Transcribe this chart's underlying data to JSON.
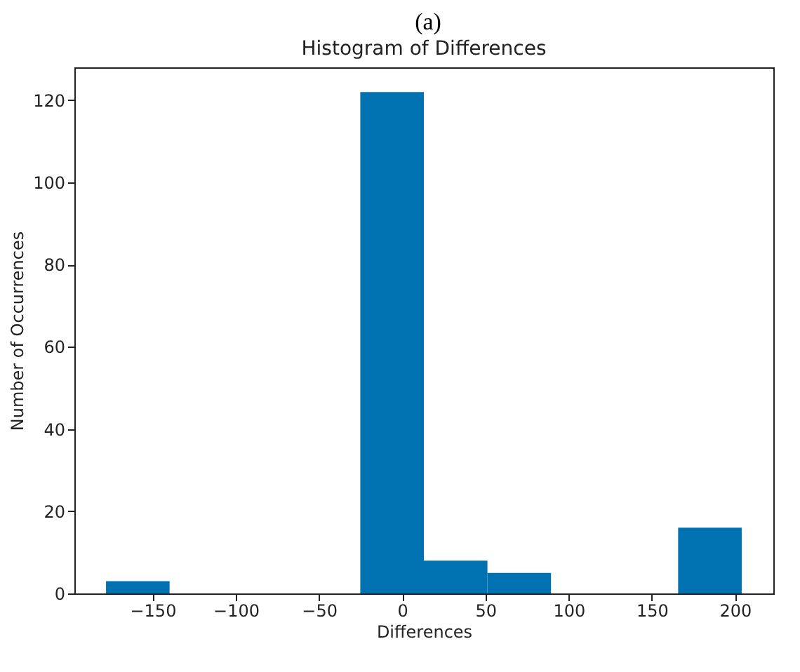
{
  "chart_data": {
    "type": "histogram",
    "title": "Histogram of Differences",
    "xlabel": "Differences",
    "ylabel": "Number of Occurrences",
    "annotations": [
      "(a)"
    ],
    "bins": [
      -178,
      -139.8,
      -101.6,
      -63.4,
      -25.2,
      13,
      51.2,
      89.4,
      127.6,
      165.8,
      204
    ],
    "values": [
      3,
      0,
      0,
      0,
      122,
      8,
      5,
      0,
      0,
      16
    ],
    "color": "#0072b2",
    "xlim": [
      -197,
      223
    ],
    "xticks": [
      -150,
      -100,
      -50,
      0,
      50,
      100,
      150,
      200
    ],
    "ylim": [
      0,
      128
    ],
    "yticks": [
      0,
      20,
      40,
      60,
      80,
      100,
      120
    ],
    "grid": false
  }
}
